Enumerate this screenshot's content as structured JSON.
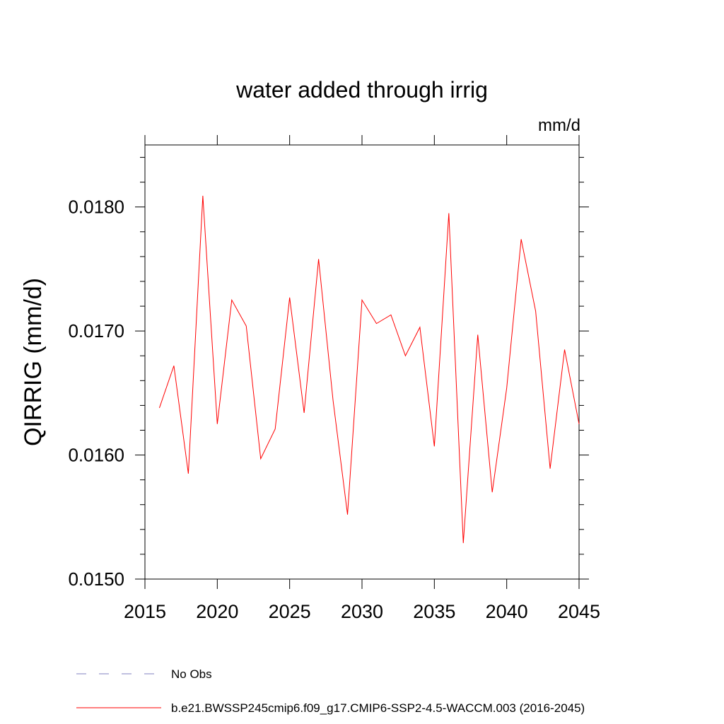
{
  "chart_data": {
    "type": "line",
    "title": "water added through irrig",
    "units": "mm/d",
    "xlabel": "",
    "ylabel": "QIRRIG  (mm/d)",
    "xlim": [
      2015,
      2045
    ],
    "ylim": [
      0.015,
      0.0185
    ],
    "x_ticks": [
      2015,
      2020,
      2025,
      2030,
      2035,
      2040,
      2045
    ],
    "x_tick_labels": [
      "2015",
      "2020",
      "2025",
      "2030",
      "2035",
      "2040",
      "2045"
    ],
    "y_ticks": [
      0.015,
      0.016,
      0.017,
      0.018
    ],
    "y_tick_labels": [
      "0.0150",
      "0.0160",
      "0.0170",
      "0.0180"
    ],
    "grid": false,
    "series": [
      {
        "name": "b.e21.BWSSP245cmip6.f09_g17.CMIP6-SSP2-4.5-WACCM.003 (2016-2045)",
        "color": "#ff0000",
        "style": "solid",
        "x": [
          2016,
          2017,
          2018,
          2019,
          2020,
          2021,
          2022,
          2023,
          2024,
          2025,
          2026,
          2027,
          2028,
          2029,
          2030,
          2031,
          2032,
          2033,
          2034,
          2035,
          2036,
          2037,
          2038,
          2039,
          2040,
          2041,
          2042,
          2043,
          2044,
          2045
        ],
        "values": [
          0.01638,
          0.01672,
          0.01585,
          0.01809,
          0.01625,
          0.01725,
          0.01704,
          0.01597,
          0.01621,
          0.01727,
          0.01634,
          0.01758,
          0.01644,
          0.01552,
          0.01725,
          0.01706,
          0.01713,
          0.0168,
          0.01703,
          0.01607,
          0.01795,
          0.01529,
          0.01697,
          0.0157,
          0.01654,
          0.01774,
          0.01716,
          0.01589,
          0.01685,
          0.01625
        ]
      }
    ],
    "legend": [
      {
        "label": "No Obs",
        "color": "#8080c0",
        "style": "dashed"
      },
      {
        "label": "b.e21.BWSSP245cmip6.f09_g17.CMIP6-SSP2-4.5-WACCM.003 (2016-2045)",
        "color": "#ff0000",
        "style": "solid"
      }
    ],
    "legend_position": "bottom-left"
  }
}
